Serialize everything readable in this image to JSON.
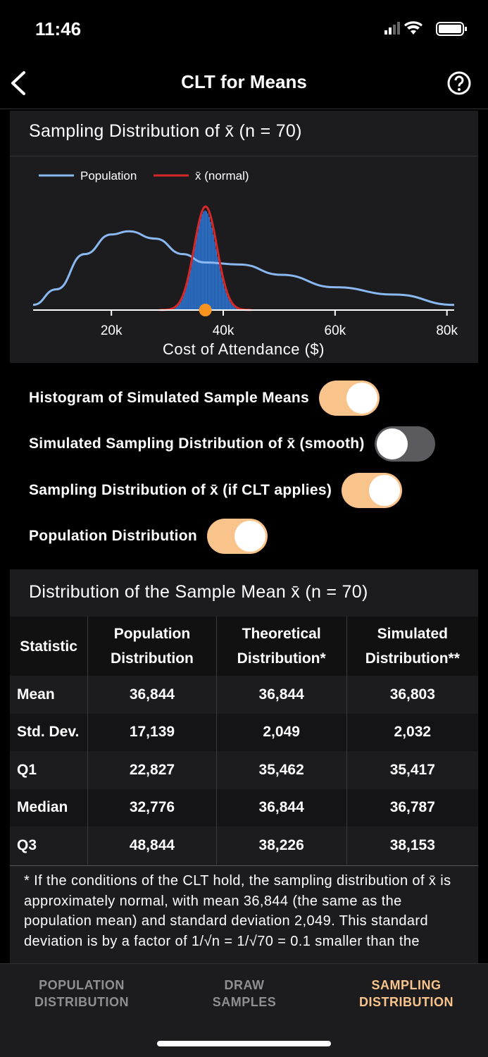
{
  "status_bar": {
    "time": "11:46"
  },
  "nav": {
    "title": "CLT for Means"
  },
  "chart_card": {
    "title": "Sampling Distribution of x̄ (n = 70)",
    "chart": {
      "type": "line",
      "legend": [
        "Population",
        "x̄ (normal)"
      ],
      "colors": [
        "#8ab8f0",
        "#d62728"
      ],
      "hist_color": "#2f7fe8",
      "dot_color": "#f7931e",
      "xlabel": "Cost of Attendance ($)",
      "xlim": [
        6000,
        81300
      ],
      "ylim": [
        0,
        1
      ],
      "xticks": [
        {
          "value": 20000,
          "label": "20k"
        },
        {
          "value": 40000,
          "label": "40k"
        },
        {
          "value": 60000,
          "label": "60k"
        },
        {
          "value": 80000,
          "label": "80k"
        }
      ],
      "population": {
        "x": [
          6000,
          10150,
          15200,
          20000,
          23100,
          27800,
          32800,
          36600,
          42900,
          50400,
          60000,
          70600,
          81300
        ],
        "y": [
          0.05,
          0.2,
          0.54,
          0.73,
          0.76,
          0.69,
          0.54,
          0.46,
          0.44,
          0.34,
          0.22,
          0.15,
          0.05
        ]
      }
    }
  },
  "toggles": [
    {
      "label": "Histogram of Simulated Sample Means",
      "on": true
    },
    {
      "label": "Simulated Sampling Distribution of x̄ (smooth)",
      "on": false
    },
    {
      "label": "Sampling Distribution of x̄ (if CLT applies)",
      "on": true
    },
    {
      "label": "Population Distribution",
      "on": true
    }
  ],
  "stats_card": {
    "title": "Distribution of the Sample Mean x̄ (n = 70)",
    "table": {
      "headers": [
        "Statistic",
        "Population Distribution",
        "Theoretical Distribution*",
        "Simulated Distribution**"
      ],
      "rows": [
        [
          "Mean",
          "36,844",
          "36,844",
          "36,803"
        ],
        [
          "Std. Dev.",
          "17,139",
          "2,049",
          "2,032"
        ],
        [
          "Q1",
          "22,827",
          "35,462",
          "35,417"
        ],
        [
          "Median",
          "32,776",
          "36,844",
          "36,787"
        ],
        [
          "Q3",
          "48,844",
          "38,226",
          "38,153"
        ]
      ]
    },
    "footnote": "* If the conditions of the CLT hold, the sampling distribution of x̄ is approximately normal, with mean 36,844 (the same as the population mean) and standard deviation 2,049. This standard deviation is by a factor of 1/√n = 1/√70 = 0.1 smaller than the"
  },
  "tabs": [
    {
      "lines": [
        "POPULATION",
        "DISTRIBUTION"
      ],
      "active": false
    },
    {
      "lines": [
        "DRAW",
        "SAMPLES"
      ],
      "active": false
    },
    {
      "lines": [
        "SAMPLING",
        "DISTRIBUTION"
      ],
      "active": true
    }
  ]
}
